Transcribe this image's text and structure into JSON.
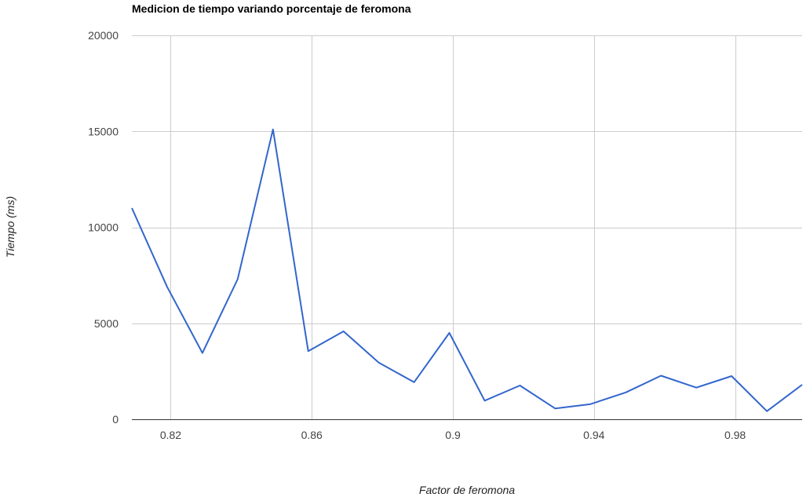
{
  "chart_data": {
    "type": "line",
    "title": "Medicion de tiempo variando porcentaje de feromona",
    "xlabel": "Factor de feromona",
    "ylabel": "Tiempo (ms)",
    "xlim": [
      0.809,
      0.999
    ],
    "ylim": [
      0,
      20000
    ],
    "x_ticks": [
      0.82,
      0.86,
      0.9,
      0.94,
      0.98
    ],
    "x_tick_labels": [
      "0.82",
      "0.86",
      "0.9",
      "0.94",
      "0.98"
    ],
    "y_ticks": [
      0,
      5000,
      10000,
      15000,
      20000
    ],
    "y_tick_labels": [
      "0",
      "5000",
      "10000",
      "15000",
      "20000"
    ],
    "grid": true,
    "legend": "none",
    "series": [
      {
        "color": "#3366cc",
        "x": [
          0.809,
          0.819,
          0.829,
          0.839,
          0.849,
          0.859,
          0.869,
          0.879,
          0.889,
          0.899,
          0.909,
          0.919,
          0.929,
          0.939,
          0.949,
          0.959,
          0.969,
          0.979,
          0.989,
          0.999
        ],
        "y": [
          11000,
          6900,
          3450,
          7300,
          15100,
          3550,
          4580,
          2950,
          1930,
          4500,
          970,
          1760,
          560,
          790,
          1400,
          2270,
          1650,
          2250,
          420,
          1800
        ]
      }
    ]
  }
}
